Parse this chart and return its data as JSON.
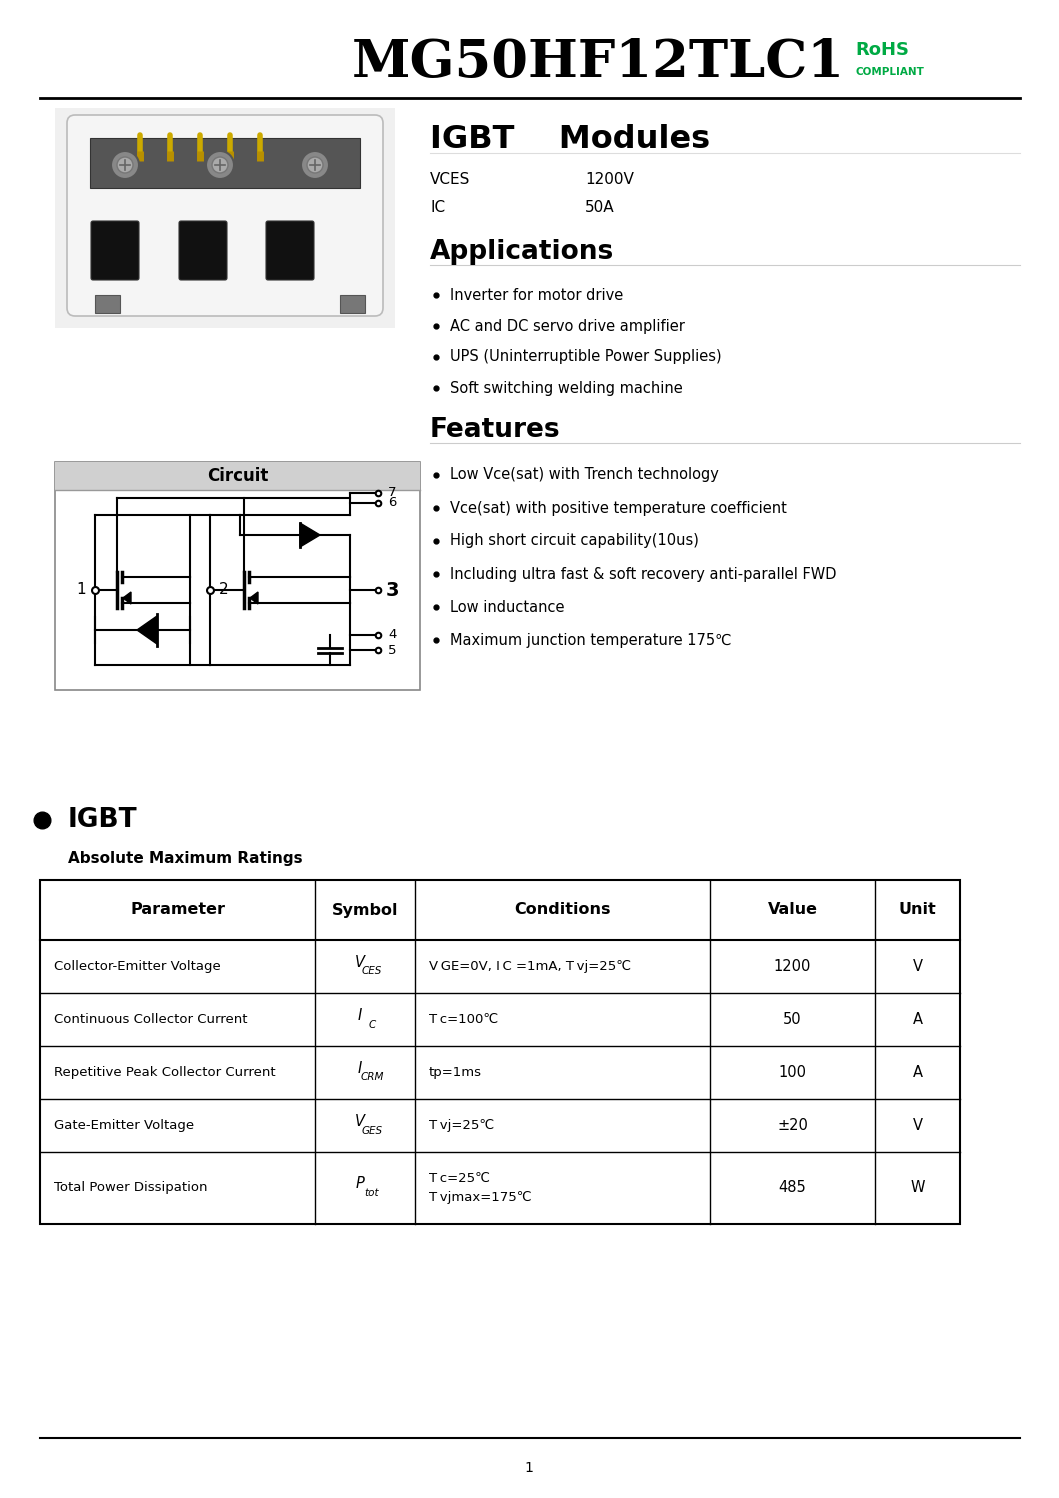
{
  "title": "MG50HF12TLC1",
  "rohs1": "RoHS",
  "rohs2": "COMPLIANT",
  "rohs_color": "#00aa44",
  "product_type": "IGBT    Modules",
  "vces_label": "VCES",
  "vces_value": "1200V",
  "ic_label": "IC",
  "ic_value": "50A",
  "applications_title": "Applications",
  "applications": [
    "Inverter for motor drive",
    "AC and DC servo drive amplifier",
    "UPS (Uninterruptible Power Supplies)",
    "Soft switching welding machine"
  ],
  "features_title": "Features",
  "features": [
    "Low Vce(sat) with Trench technology",
    "Vce(sat) with positive temperature coefficient",
    "High short circuit capability(10us)",
    "Including ultra fast & soft recovery anti-parallel FWD",
    "Low inductance",
    "Maximum junction temperature 175℃"
  ],
  "circuit_title": "Circuit",
  "igbt_bullet": "IGBT",
  "table_subtitle": "Absolute Maximum Ratings",
  "table_headers": [
    "Parameter",
    "Symbol",
    "Conditions",
    "Value",
    "Unit"
  ],
  "table_rows": [
    {
      "param": "Collector-Emitter Voltage",
      "sym_main": "V",
      "sym_sub": "CES",
      "conditions": "V GE=0V, I C =1mA, T vj=25℃",
      "value": "1200",
      "unit": "V"
    },
    {
      "param": "Continuous Collector Current",
      "sym_main": "I",
      "sym_sub": "C",
      "conditions": "T c=100℃",
      "value": "50",
      "unit": "A"
    },
    {
      "param": "Repetitive Peak Collector Current",
      "sym_main": "I",
      "sym_sub": "CRM",
      "conditions": "tp=1ms",
      "value": "100",
      "unit": "A"
    },
    {
      "param": "Gate-Emitter Voltage",
      "sym_main": "V",
      "sym_sub": "GES",
      "conditions": "T vj=25℃",
      "value": "±20",
      "unit": "V"
    },
    {
      "param": "Total Power Dissipation",
      "sym_main": "P",
      "sym_sub": "tot",
      "conditions": "T c=25℃\nT vjmax=175℃",
      "value": "485",
      "unit": "W"
    }
  ],
  "page_number": "1",
  "bg_color": "#ffffff"
}
